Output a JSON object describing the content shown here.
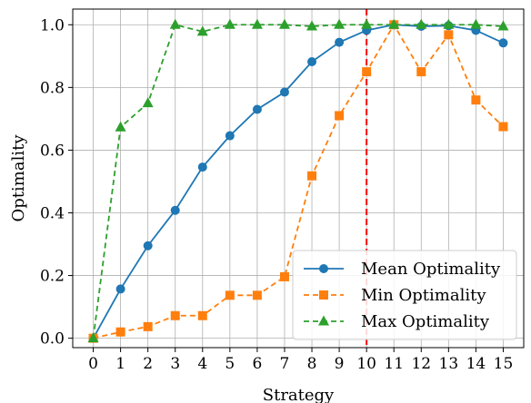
{
  "chart_data": {
    "type": "line",
    "xlabel": "Strategy",
    "ylabel": "Optimality",
    "xlim": [
      -0.75,
      15.75
    ],
    "ylim": [
      -0.03,
      1.05
    ],
    "x": [
      0,
      1,
      2,
      3,
      4,
      5,
      6,
      7,
      8,
      9,
      10,
      11,
      12,
      13,
      14,
      15
    ],
    "x_ticks": [
      "0",
      "1",
      "2",
      "3",
      "4",
      "5",
      "6",
      "7",
      "8",
      "9",
      "10",
      "11",
      "12",
      "13",
      "14",
      "15"
    ],
    "y_ticks": [
      0.0,
      0.2,
      0.4,
      0.6,
      0.8,
      1.0
    ],
    "y_tick_labels": [
      "0.0",
      "0.2",
      "0.4",
      "0.6",
      "0.8",
      "1.0"
    ],
    "grid": true,
    "legend_position": "lower-right",
    "vline": {
      "x": 10,
      "color": "#ff0000",
      "style": "dashed"
    },
    "series": [
      {
        "name": "Mean Optimality",
        "color": "#1f77b4",
        "marker": "circle",
        "linestyle": "solid",
        "values": [
          0.0,
          0.157,
          0.295,
          0.408,
          0.546,
          0.646,
          0.73,
          0.785,
          0.882,
          0.944,
          0.982,
          1.0,
          0.995,
          0.997,
          0.982,
          0.942
        ]
      },
      {
        "name": "Min Optimality",
        "color": "#ff7f0e",
        "marker": "square",
        "linestyle": "dashed",
        "values": [
          0.0,
          0.02,
          0.037,
          0.072,
          0.072,
          0.137,
          0.137,
          0.196,
          0.518,
          0.71,
          0.85,
          1.0,
          0.85,
          0.968,
          0.76,
          0.675
        ]
      },
      {
        "name": "Max Optimality",
        "color": "#2ca02c",
        "marker": "triangle",
        "linestyle": "dashed",
        "values": [
          0.0,
          0.673,
          0.75,
          1.0,
          0.978,
          1.0,
          1.0,
          1.0,
          0.995,
          1.0,
          1.0,
          1.0,
          1.0,
          1.0,
          1.0,
          0.995
        ]
      }
    ]
  }
}
